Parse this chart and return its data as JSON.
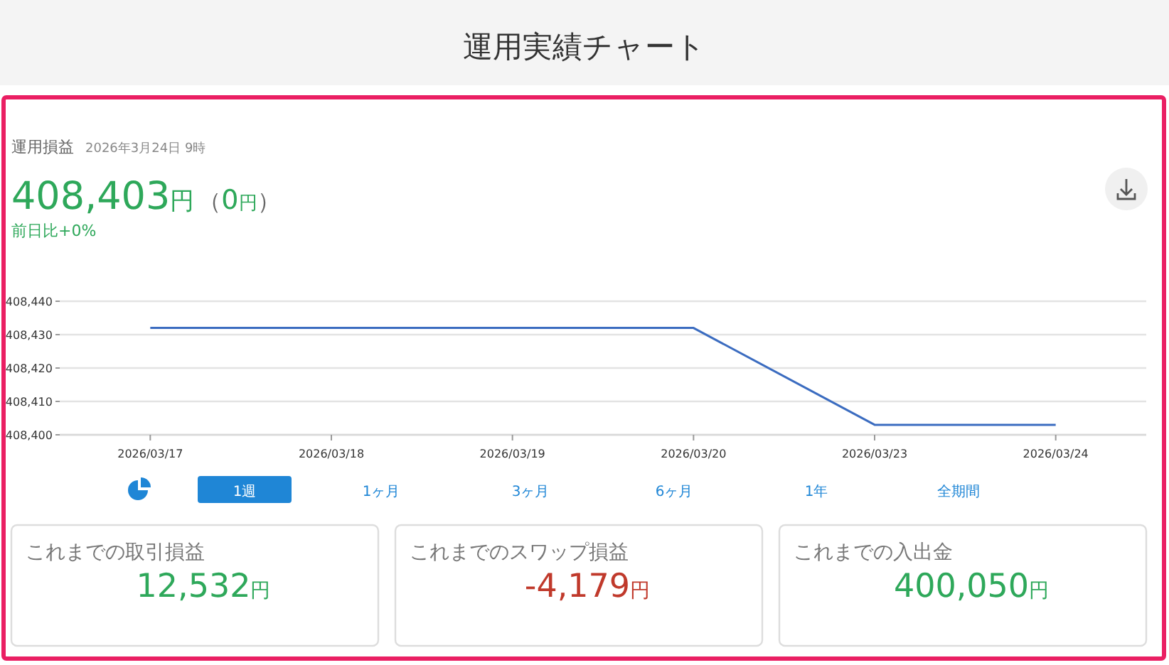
{
  "chart_data": [
    {
      "type": "line",
      "title": "運用実績チャート",
      "categories": [
        "2026/03/17",
        "2026/03/18",
        "2026/03/19",
        "2026/03/20",
        "2026/03/23",
        "2026/03/24"
      ],
      "series": [
        {
          "color": "#3b6cc0",
          "values": [
            408432,
            408432,
            408432,
            408432,
            408403,
            408403
          ]
        }
      ],
      "ylim": [
        408400,
        408440
      ],
      "yticks": [
        {
          "value": 408400,
          "label": "408,400"
        },
        {
          "value": 408410,
          "label": "408,410"
        },
        {
          "value": 408420,
          "label": "408,420"
        },
        {
          "value": 408430,
          "label": "408,430"
        },
        {
          "value": 408440,
          "label": "408,440"
        }
      ],
      "grid": "y",
      "marker": "none",
      "annotations": [
        "運用損益",
        "2026年3月24日 9時",
        "408,403",
        "円",
        "（",
        "0",
        "円",
        "）",
        "前日比+0%",
        "1週",
        "1ヶ月",
        "3ヶ月",
        "6ヶ月",
        "1年",
        "全期間"
      ]
    },
    {
      "type": "other",
      "annotations": [
        "これまでの取引損益",
        "12,532",
        "円",
        "これまでのスワップ損益",
        "-4,179",
        "円",
        "これまでの入出金",
        "400,050",
        "円"
      ]
    }
  ]
}
